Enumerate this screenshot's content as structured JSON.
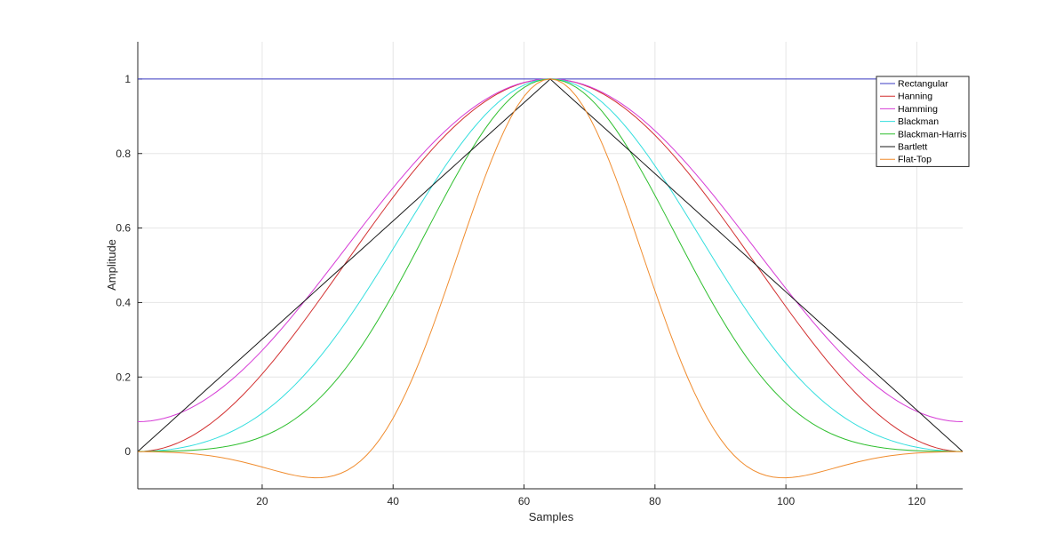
{
  "chart_data": {
    "type": "line",
    "xlabel": "Samples",
    "ylabel": "Amplitude",
    "xlim": [
      1,
      127
    ],
    "ylim": [
      -0.1,
      1.1
    ],
    "xticks": [
      20,
      40,
      60,
      80,
      100,
      120
    ],
    "yticks": [
      0,
      0.2,
      0.4,
      0.6,
      0.8,
      1
    ],
    "grid": true,
    "legend_position": "top-right",
    "N": 127,
    "series": [
      {
        "name": "Rectangular",
        "color": "#3b3bc4",
        "window": "rectangular"
      },
      {
        "name": "Hanning",
        "color": "#d22f2f",
        "window": "hanning"
      },
      {
        "name": "Hamming",
        "color": "#d63bd6",
        "window": "hamming"
      },
      {
        "name": "Blackman",
        "color": "#33dede",
        "window": "blackman"
      },
      {
        "name": "Blackman-Harris",
        "color": "#2fbf2f",
        "window": "blackman-harris"
      },
      {
        "name": "Bartlett",
        "color": "#1a1a1a",
        "window": "bartlett"
      },
      {
        "name": "Flat-Top",
        "color": "#f08c2e",
        "window": "flat-top"
      }
    ]
  }
}
